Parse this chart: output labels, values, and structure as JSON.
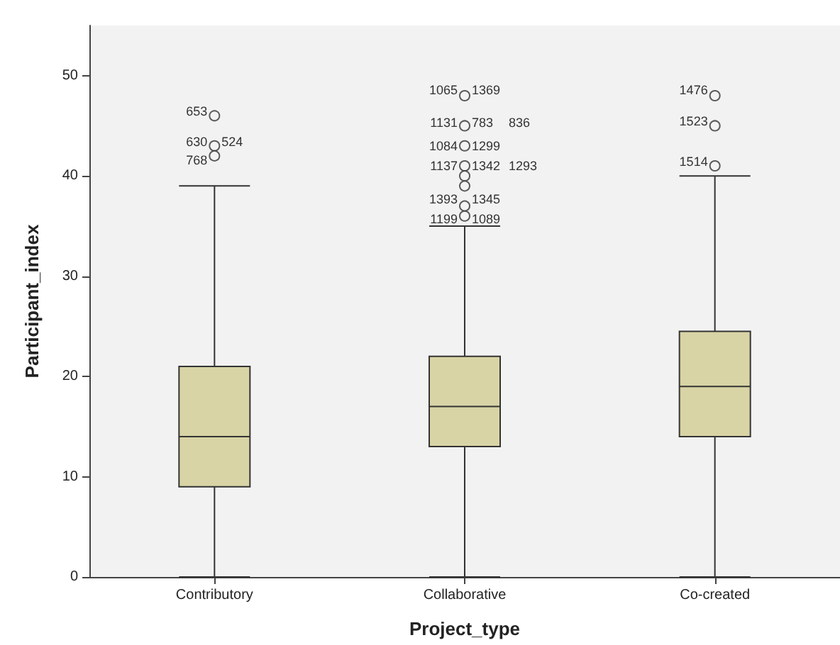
{
  "chart_data": {
    "type": "box",
    "xlabel": "Project_type",
    "ylabel": "Participant_index",
    "categories": [
      "Contributory",
      "Collaborative",
      "Co-created"
    ],
    "color": "#d9d4a6",
    "boxes": [
      {
        "low": 0,
        "q1": 9,
        "median": 14,
        "q3": 21,
        "high": 39,
        "outliers": [
          46,
          43,
          42
        ]
      },
      {
        "low": 0,
        "q1": 13,
        "median": 17,
        "q3": 22,
        "high": 35,
        "outliers": [
          48,
          45,
          43,
          41,
          40,
          39,
          37,
          36
        ]
      },
      {
        "low": 0,
        "q1": 14,
        "median": 19,
        "q3": 24.5,
        "high": 40,
        "outliers": [
          48,
          45,
          41
        ]
      }
    ],
    "ylim": [
      0,
      55
    ],
    "yticks": [
      0,
      10,
      20,
      30,
      40,
      50
    ],
    "marker": "circle",
    "annotations": [
      "653",
      "630",
      "524",
      "768",
      "1065",
      "1369",
      "1131",
      "783",
      "836",
      "1084",
      "1299",
      "1137",
      "1342",
      "1293",
      "1393",
      "1345",
      "1199",
      "1089",
      "1476",
      "1523",
      "1514"
    ]
  }
}
